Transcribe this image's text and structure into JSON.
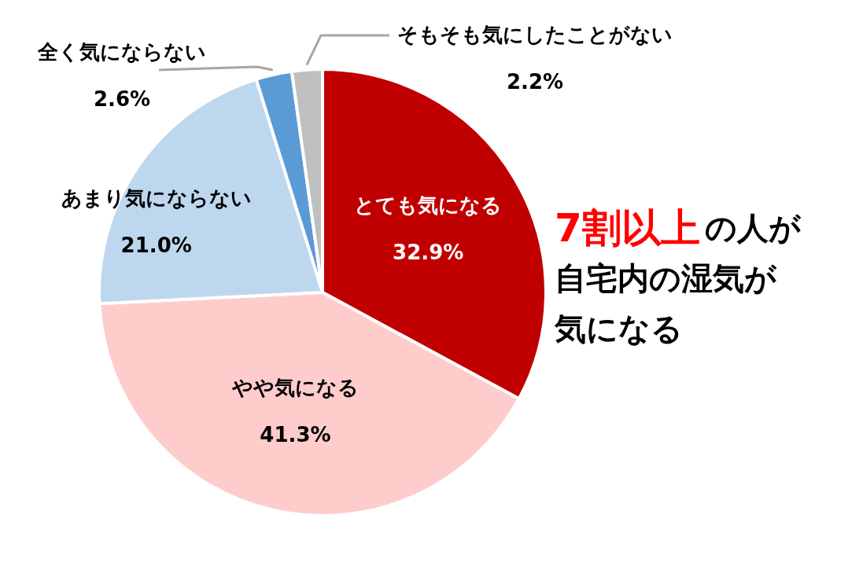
{
  "chart_data": {
    "type": "pie",
    "categories": [
      "とても気になる",
      "やや気になる",
      "あまり気にならない",
      "全く気にならない",
      "そもそも気にしたことがない"
    ],
    "values": [
      32.9,
      41.3,
      21.0,
      2.6,
      2.2
    ],
    "value_labels": [
      "32.9%",
      "41.3%",
      "21.0%",
      "2.6%",
      "2.2%"
    ],
    "colors": [
      "#c00000",
      "#ffcccc",
      "#bdd7ee",
      "#5b9bd5",
      "#bfbfbf"
    ],
    "annotations": [
      "7割以上",
      "の人が",
      "自宅内の湿気が",
      "気になる"
    ]
  }
}
